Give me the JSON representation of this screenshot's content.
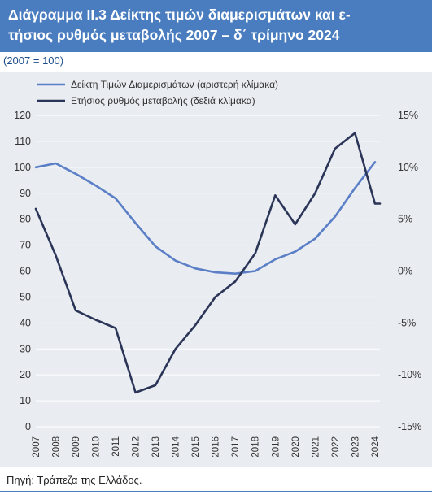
{
  "figure": {
    "title_line1": "Διάγραμμα ΙΙ.3 Δείκτης τιμών διαμερισμάτων και ε-",
    "title_line2": "τήσιος ρυθμός μεταβολής 2007 – δ΄ τρίμηνο 2024",
    "base_note": "(2007 = 100)",
    "source": "Πηγή: Τράπεζα της Ελλάδος."
  },
  "colors": {
    "title_band": "#4a7dbf",
    "index_line": "#5b7fc7",
    "growth_line": "#2b3557",
    "plot_background": "#e9ecf1",
    "gridline": "#ffffff"
  },
  "chart_data": {
    "type": "line",
    "x": [
      "2007",
      "2008",
      "2009",
      "2010",
      "2011",
      "2012",
      "2013",
      "2014",
      "2015",
      "2016",
      "2017",
      "2018",
      "2019",
      "2020",
      "2021",
      "2022",
      "2023",
      "2024"
    ],
    "series": [
      {
        "name": "Δείκτη Τιμών Διαμερισμάτων (αριστερή κλίμακα)",
        "axis": "left",
        "points": [
          {
            "x": 2007.0,
            "y": 100.0
          },
          {
            "x": 2008.0,
            "y": 101.5
          },
          {
            "x": 2009.0,
            "y": 97.5
          },
          {
            "x": 2010.0,
            "y": 93.0
          },
          {
            "x": 2011.0,
            "y": 88.0
          },
          {
            "x": 2012.0,
            "y": 78.5
          },
          {
            "x": 2013.0,
            "y": 69.5
          },
          {
            "x": 2014.0,
            "y": 64.0
          },
          {
            "x": 2015.0,
            "y": 61.0
          },
          {
            "x": 2016.0,
            "y": 59.5
          },
          {
            "x": 2017.0,
            "y": 59.0
          },
          {
            "x": 2018.0,
            "y": 60.0
          },
          {
            "x": 2019.0,
            "y": 64.5
          },
          {
            "x": 2020.0,
            "y": 67.5
          },
          {
            "x": 2021.0,
            "y": 72.5
          },
          {
            "x": 2022.0,
            "y": 81.0
          },
          {
            "x": 2023.0,
            "y": 92.0
          },
          {
            "x": 2024.0,
            "y": 102.0
          }
        ]
      },
      {
        "name": "Ετήσιος ρυθμός μεταβολής (δεξιά κλίμακα)",
        "axis": "right",
        "unit": "%",
        "points": [
          {
            "x": 2007.0,
            "y": 6.0
          },
          {
            "x": 2008.0,
            "y": 1.5
          },
          {
            "x": 2009.0,
            "y": -3.8
          },
          {
            "x": 2010.0,
            "y": -4.7
          },
          {
            "x": 2011.0,
            "y": -5.5
          },
          {
            "x": 2012.0,
            "y": -11.7
          },
          {
            "x": 2013.0,
            "y": -11.0
          },
          {
            "x": 2014.0,
            "y": -7.5
          },
          {
            "x": 2015.0,
            "y": -5.2
          },
          {
            "x": 2016.0,
            "y": -2.5
          },
          {
            "x": 2017.0,
            "y": -1.0
          },
          {
            "x": 2018.0,
            "y": 1.7
          },
          {
            "x": 2019.0,
            "y": 7.3
          },
          {
            "x": 2020.0,
            "y": 4.5
          },
          {
            "x": 2021.0,
            "y": 7.5
          },
          {
            "x": 2022.0,
            "y": 11.8
          },
          {
            "x": 2023.0,
            "y": 13.3
          },
          {
            "x": 2024.0,
            "y": 6.5
          },
          {
            "x": 2024.25,
            "y": 6.5
          }
        ]
      }
    ],
    "y_left": {
      "min": 0,
      "max": 120,
      "step": 10,
      "ticks": [
        "0",
        "10",
        "20",
        "30",
        "40",
        "50",
        "60",
        "70",
        "80",
        "90",
        "100",
        "110",
        "120"
      ]
    },
    "y_right": {
      "min": -15,
      "max": 15,
      "step": 5,
      "ticks": [
        "-15%",
        "-10%",
        "-5%",
        "0%",
        "5%",
        "10%",
        "15%"
      ]
    },
    "grid": true,
    "legend": "top-left"
  }
}
